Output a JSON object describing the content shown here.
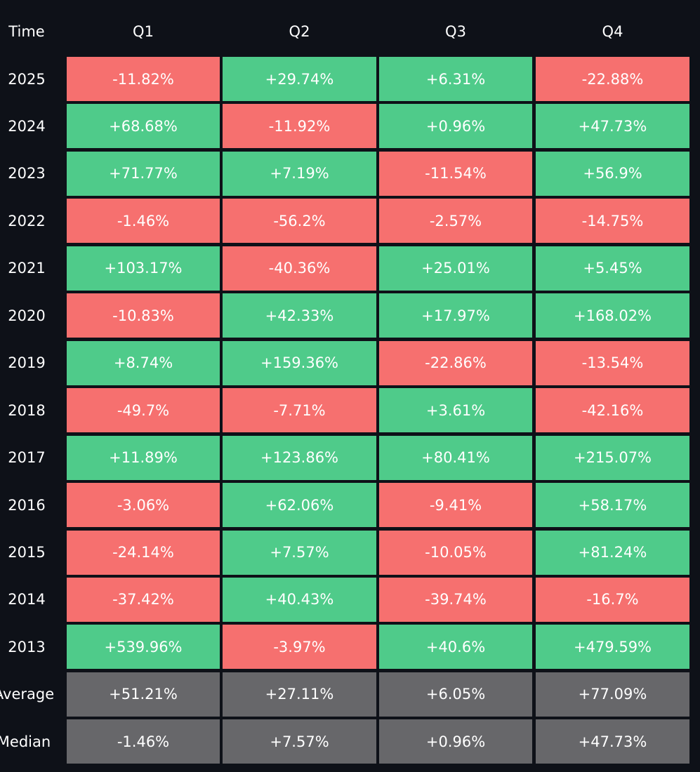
{
  "table": {
    "header": [
      "Time",
      "Q1",
      "Q2",
      "Q3",
      "Q4"
    ],
    "rows": [
      [
        "2025",
        "-11.82%",
        "+29.74%",
        "+6.31%",
        "-22.88%"
      ],
      [
        "2024",
        "+68.68%",
        "-11.92%",
        "+0.96%",
        "+47.73%"
      ],
      [
        "2023",
        "+71.77%",
        "+7.19%",
        "-11.54%",
        "+56.9%"
      ],
      [
        "2022",
        "-1.46%",
        "-56.2%",
        "-2.57%",
        "-14.75%"
      ],
      [
        "2021",
        "+103.17%",
        "-40.36%",
        "+25.01%",
        "+5.45%"
      ],
      [
        "2020",
        "-10.83%",
        "+42.33%",
        "+17.97%",
        "+168.02%"
      ],
      [
        "2019",
        "+8.74%",
        "+159.36%",
        "-22.86%",
        "-13.54%"
      ],
      [
        "2018",
        "-49.7%",
        "-7.71%",
        "+3.61%",
        "-42.16%"
      ],
      [
        "2017",
        "+11.89%",
        "+123.86%",
        "+80.41%",
        "+215.07%"
      ],
      [
        "2016",
        "-3.06%",
        "+62.06%",
        "-9.41%",
        "+58.17%"
      ],
      [
        "2015",
        "-24.14%",
        "+7.57%",
        "-10.05%",
        "+81.24%"
      ],
      [
        "2014",
        "-37.42%",
        "+40.43%",
        "-39.74%",
        "-16.7%"
      ],
      [
        "2013",
        "+539.96%",
        "-3.97%",
        "+40.6%",
        "+479.59%"
      ]
    ],
    "summary_rows": [
      [
        "Average",
        "+51.21%",
        "+27.11%",
        "+6.05%",
        "+77.09%"
      ],
      [
        "Median",
        "-1.46%",
        "+7.57%",
        "+0.96%",
        "+47.73%"
      ]
    ]
  }
}
